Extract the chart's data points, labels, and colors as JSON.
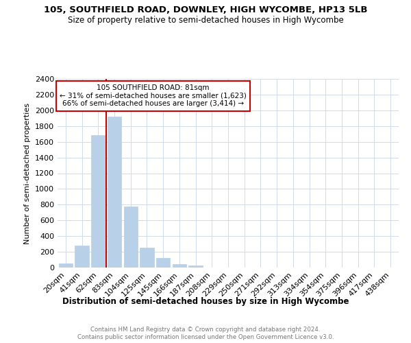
{
  "title": "105, SOUTHFIELD ROAD, DOWNLEY, HIGH WYCOMBE, HP13 5LB",
  "subtitle": "Size of property relative to semi-detached houses in High Wycombe",
  "xlabel": "Distribution of semi-detached houses by size in High Wycombe",
  "ylabel": "Number of semi-detached properties",
  "categories": [
    "20sqm",
    "41sqm",
    "62sqm",
    "83sqm",
    "104sqm",
    "125sqm",
    "145sqm",
    "166sqm",
    "187sqm",
    "208sqm",
    "229sqm",
    "250sqm",
    "271sqm",
    "292sqm",
    "313sqm",
    "334sqm",
    "354sqm",
    "375sqm",
    "396sqm",
    "417sqm",
    "438sqm"
  ],
  "values": [
    50,
    280,
    1680,
    1920,
    780,
    250,
    125,
    40,
    25,
    0,
    0,
    0,
    0,
    0,
    0,
    0,
    0,
    0,
    0,
    0,
    0
  ],
  "bar_color": "#b8d0e8",
  "bar_edge_color": "#b8d0e8",
  "grid_color": "#d0daea",
  "property_line_color": "#cc0000",
  "annotation_title": "105 SOUTHFIELD ROAD: 81sqm",
  "annotation_line1": "← 31% of semi-detached houses are smaller (1,623)",
  "annotation_line2": "66% of semi-detached houses are larger (3,414) →",
  "footer1": "Contains HM Land Registry data © Crown copyright and database right 2024.",
  "footer2": "Contains public sector information licensed under the Open Government Licence v3.0.",
  "ylim": [
    0,
    2400
  ],
  "yticks": [
    0,
    200,
    400,
    600,
    800,
    1000,
    1200,
    1400,
    1600,
    1800,
    2000,
    2200,
    2400
  ]
}
